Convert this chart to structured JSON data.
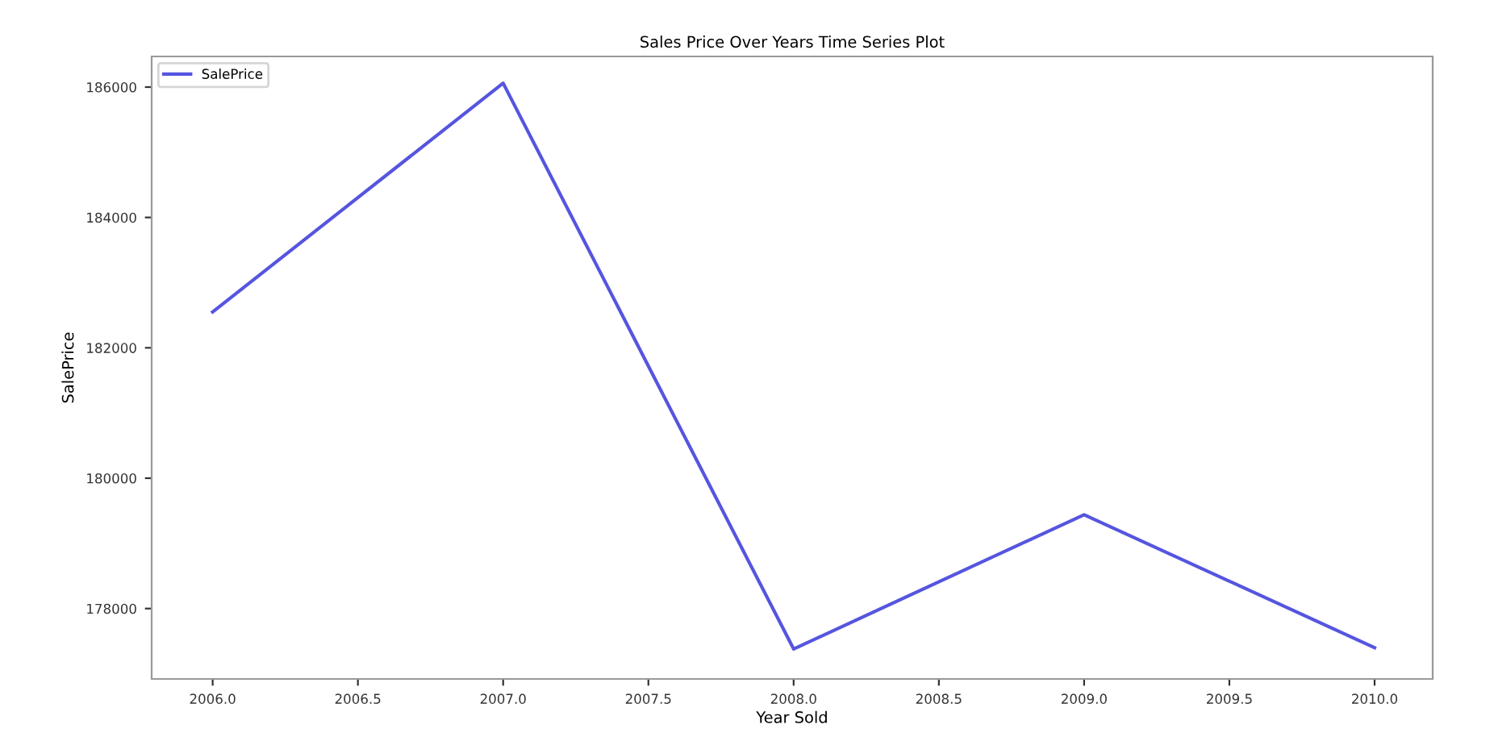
{
  "chart_data": {
    "type": "line",
    "title": "Sales Price Over Years Time Series Plot",
    "xlabel": "Year Sold",
    "ylabel": "SalePrice",
    "x": [
      2006,
      2007,
      2008,
      2009,
      2010
    ],
    "series": [
      {
        "name": "SalePrice",
        "color": "#5555e0",
        "values": [
          182550,
          186060,
          177380,
          179440,
          177400
        ]
      }
    ],
    "xlim": [
      2005.79,
      2010.2
    ],
    "xticks": [
      {
        "value": 2006,
        "label": "2006.0"
      },
      {
        "value": 2006.5,
        "label": "2006.5"
      },
      {
        "value": 2007,
        "label": "2007.0"
      },
      {
        "value": 2007.5,
        "label": "2007.5"
      },
      {
        "value": 2008,
        "label": "2008.0"
      },
      {
        "value": 2008.5,
        "label": "2008.5"
      },
      {
        "value": 2009,
        "label": "2009.0"
      },
      {
        "value": 2009.5,
        "label": "2009.5"
      },
      {
        "value": 2010,
        "label": "2010.0"
      }
    ],
    "ylim": [
      176920,
      186470
    ],
    "yticks": [
      178000,
      180000,
      182000,
      184000,
      186000
    ],
    "legend": "top left",
    "grid": false,
    "marker": "none",
    "line_style": "solid"
  }
}
